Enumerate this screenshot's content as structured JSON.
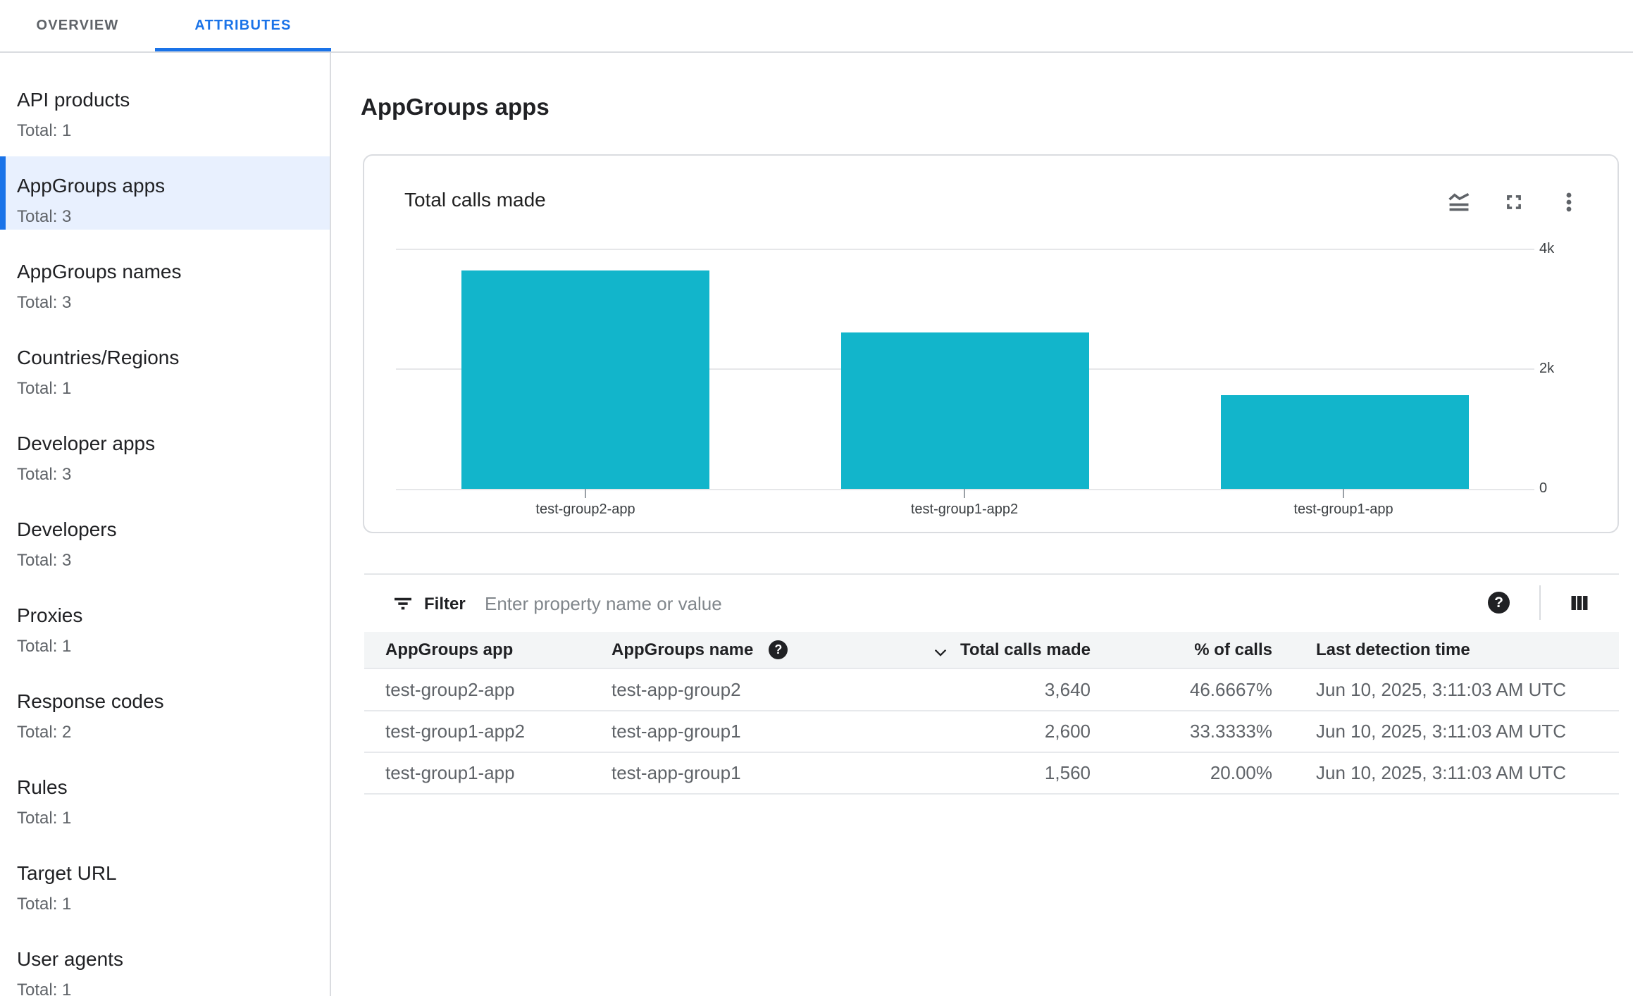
{
  "tabs": {
    "overview": {
      "label": "OVERVIEW",
      "active": false
    },
    "attributes": {
      "label": "ATTRIBUTES",
      "active": true
    }
  },
  "sidebar": {
    "items": [
      {
        "label": "API products",
        "total": "Total: 1",
        "selected": false
      },
      {
        "label": "AppGroups apps",
        "total": "Total: 3",
        "selected": true
      },
      {
        "label": "AppGroups names",
        "total": "Total: 3",
        "selected": false
      },
      {
        "label": "Countries/Regions",
        "total": "Total: 1",
        "selected": false
      },
      {
        "label": "Developer apps",
        "total": "Total: 3",
        "selected": false
      },
      {
        "label": "Developers",
        "total": "Total: 3",
        "selected": false
      },
      {
        "label": "Proxies",
        "total": "Total: 1",
        "selected": false
      },
      {
        "label": "Response codes",
        "total": "Total: 2",
        "selected": false
      },
      {
        "label": "Rules",
        "total": "Total: 1",
        "selected": false
      },
      {
        "label": "Target URL",
        "total": "Total: 1",
        "selected": false
      },
      {
        "label": "User agents",
        "total": "Total: 1",
        "selected": false
      }
    ]
  },
  "page": {
    "title": "AppGroups apps"
  },
  "chart_card": {
    "title": "Total calls made",
    "icons": [
      "chart-type-icon",
      "fullscreen-icon",
      "more-vert-icon"
    ]
  },
  "chart_data": {
    "type": "bar",
    "title": "Total calls made",
    "categories": [
      "test-group2-app",
      "test-group1-app2",
      "test-group1-app"
    ],
    "values": [
      3640,
      2600,
      1560
    ],
    "ylim": [
      0,
      4000
    ],
    "yticks": [
      {
        "label": "4k",
        "value": 4000
      },
      {
        "label": "2k",
        "value": 2000
      },
      {
        "label": "0",
        "value": 0
      }
    ],
    "bar_color": "#12b5cb",
    "grid": true,
    "axis_side": "right",
    "legend": "none",
    "xlabel": "",
    "ylabel": ""
  },
  "filter": {
    "label": "Filter",
    "placeholder": "Enter property name or value",
    "value": "",
    "help_glyph": "?"
  },
  "table": {
    "header": {
      "app": "AppGroups app",
      "name": "AppGroups name",
      "calls": "Total calls made",
      "pct": "% of calls",
      "time": "Last detection time",
      "sort_column": "Total calls made",
      "sort_direction": "desc",
      "help_glyph": "?"
    },
    "rows": [
      {
        "app": "test-group2-app",
        "name": "test-app-group2",
        "calls": "3,640",
        "pct": "46.6667%",
        "time": "Jun 10, 2025, 3:11:03 AM UTC"
      },
      {
        "app": "test-group1-app2",
        "name": "test-app-group1",
        "calls": "2,600",
        "pct": "33.3333%",
        "time": "Jun 10, 2025, 3:11:03 AM UTC"
      },
      {
        "app": "test-group1-app",
        "name": "test-app-group1",
        "calls": "1,560",
        "pct": "20.00%",
        "time": "Jun 10, 2025, 3:11:03 AM UTC"
      }
    ]
  },
  "colors": {
    "accent_blue": "#1a73e8",
    "selected_item_bg": "#e8f0fe",
    "bar_teal": "#12b5cb",
    "text_primary": "#202124",
    "text_secondary": "#5f6368",
    "divider": "#dadce0",
    "table_header_bg": "#f3f5f6"
  }
}
